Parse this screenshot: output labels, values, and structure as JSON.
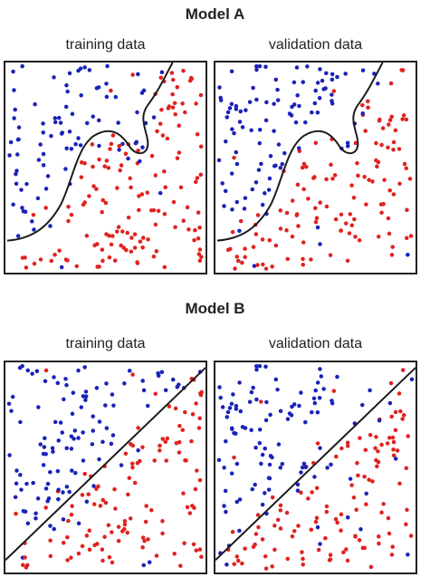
{
  "figure": {
    "models": [
      {
        "title": "Model A",
        "boundary": "curved",
        "panels": [
          {
            "title": "training data",
            "seed": 11
          },
          {
            "title": "validation data",
            "seed": 27
          }
        ]
      },
      {
        "title": "Model B",
        "boundary": "linear",
        "panels": [
          {
            "title": "training data",
            "seed": 11
          },
          {
            "title": "validation data",
            "seed": 27
          }
        ]
      }
    ]
  },
  "colors": {
    "class_blue": "#1a22b8",
    "class_red": "#e0221f",
    "boundary": "#1a1a1a",
    "frame": "#222222"
  }
}
